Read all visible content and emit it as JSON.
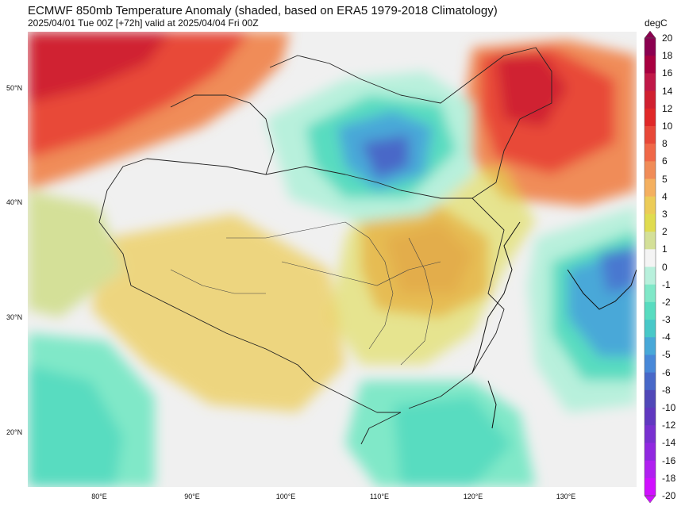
{
  "title": "ECMWF 850mb Temperature Anomaly (shaded, based on ERA5 1979-2018 Climatology)",
  "subtitle": "2025/04/01 Tue 00Z [+72h] valid at 2025/04/04 Fri 00Z",
  "map": {
    "region": "East Asia",
    "lat_labels": [
      "50°N",
      "40°N",
      "30°N",
      "20°N"
    ],
    "lon_labels": [
      "80°E",
      "90°E",
      "100°E",
      "110°E",
      "120°E",
      "130°E"
    ],
    "colors": {
      "background_near_zero": "#f0f0f0",
      "warm_high": "#e83a30",
      "warm_mid": "#f08040",
      "warm_low": "#e8d040",
      "cool_low": "#a8ecd8",
      "cool_mid": "#50d0b8",
      "cool_high": "#4878d0",
      "border": "#222222"
    }
  },
  "colorbar": {
    "unit": "degC",
    "levels": [
      "20",
      "18",
      "16",
      "14",
      "12",
      "10",
      "8",
      "6",
      "5",
      "4",
      "3",
      "2",
      "1",
      "0",
      "-1",
      "-2",
      "-3",
      "-4",
      "-5",
      "-6",
      "-8",
      "-10",
      "-12",
      "-14",
      "-16",
      "-18",
      "-20"
    ],
    "colors": [
      "#8b0050",
      "#a80040",
      "#c01848",
      "#d02030",
      "#e02828",
      "#e84838",
      "#f06848",
      "#f08c58",
      "#f4b060",
      "#eccc58",
      "#e0dc50",
      "#d4e098",
      "#f4f4f4",
      "#b8f0dc",
      "#80e8c8",
      "#58dcc0",
      "#48c8c8",
      "#48a8d8",
      "#4888d8",
      "#4868c8",
      "#5048b8",
      "#6038c0",
      "#7830d0",
      "#9028e0",
      "#b020f0",
      "#d010ff"
    ]
  }
}
